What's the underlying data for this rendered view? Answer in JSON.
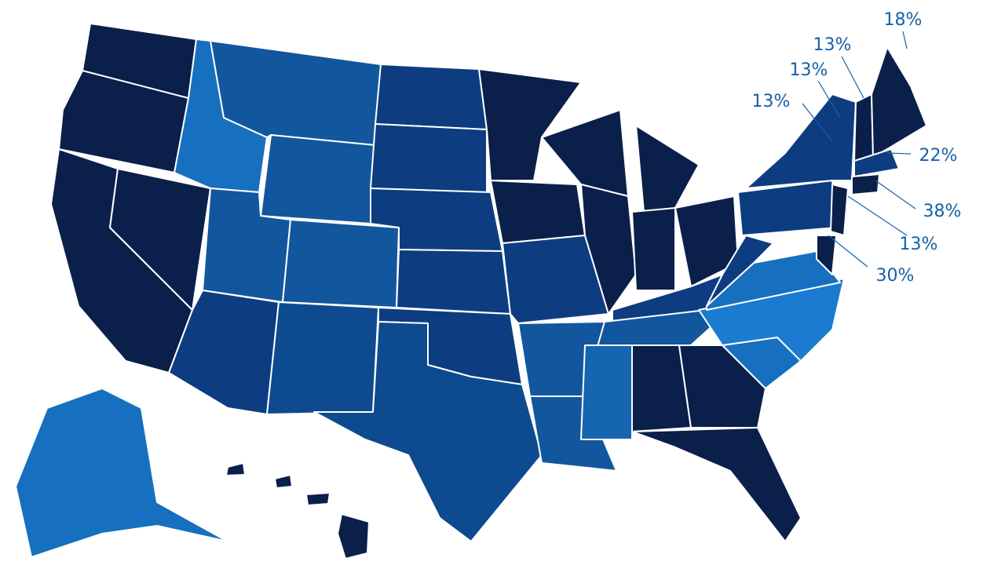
{
  "labels": [
    {
      "text": "18%"
    },
    {
      "text": "13%"
    },
    {
      "text": "13%"
    },
    {
      "text": "13%"
    },
    {
      "text": "22%"
    },
    {
      "text": "38%"
    },
    {
      "text": "13%"
    },
    {
      "text": "30%"
    }
  ]
}
